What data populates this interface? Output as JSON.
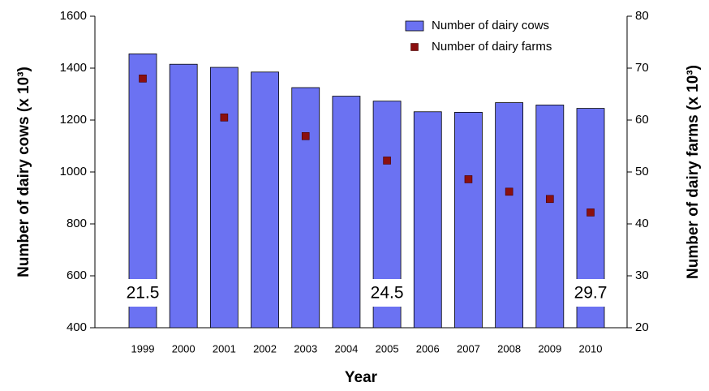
{
  "chart_data": {
    "type": "bar_scatter_dual",
    "x_label": "Year",
    "y_label": "Number of dairy cows (x 10³)",
    "y2_label": "Number of dairy farms (x 10³)",
    "categories": [
      "1999",
      "2000",
      "2001",
      "2002",
      "2003",
      "2004",
      "2005",
      "2006",
      "2007",
      "2008",
      "2009",
      "2010"
    ],
    "series": [
      {
        "name": "Number of dairy cows",
        "color": "#6b72f2",
        "kind": "bar",
        "axis": "y",
        "values": [
          1455,
          1415,
          1403,
          1385,
          1325,
          1292,
          1273,
          1232,
          1230,
          1267,
          1258,
          1245
        ]
      },
      {
        "name": "Number of dairy farms",
        "color": "#8b0f0f",
        "kind": "marker",
        "axis": "y2",
        "values": [
          68.0,
          null,
          60.5,
          null,
          56.9,
          null,
          52.2,
          null,
          48.6,
          46.2,
          44.8,
          42.2
        ]
      }
    ],
    "ylim": [
      400,
      1600
    ],
    "yticks": [
      400,
      600,
      800,
      1000,
      1200,
      1400,
      1600
    ],
    "y2lim": [
      20,
      80
    ],
    "y2ticks": [
      20,
      30,
      40,
      50,
      60,
      70,
      80
    ],
    "annotations": [
      {
        "text": "21.5",
        "x": "1999"
      },
      {
        "text": "24.5",
        "x": "2005"
      },
      {
        "text": "29.7",
        "x": "2010"
      }
    ],
    "legend": "top-right"
  }
}
